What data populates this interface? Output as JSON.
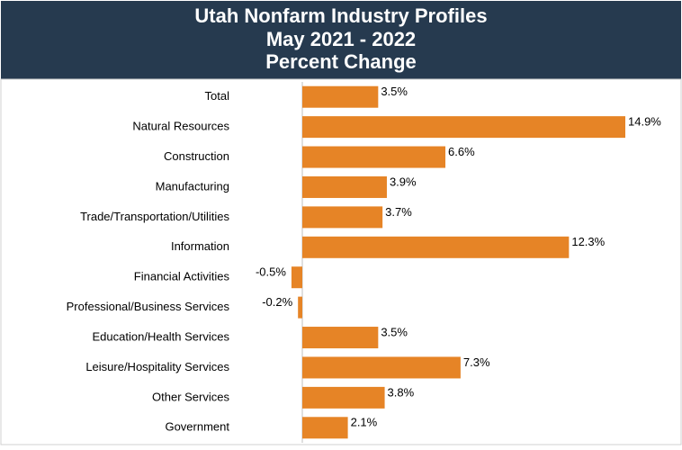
{
  "chart_data": {
    "type": "bar",
    "orientation": "horizontal",
    "title": "Utah Nonfarm Industry Profiles",
    "subtitle": [
      "May 2021 - 2022",
      "Percent Change"
    ],
    "categories": [
      "Total",
      "Natural Resources",
      "Construction",
      "Manufacturing",
      "Trade/Transportation/Utilities",
      "Information",
      "Financial Activities",
      "Professional/Business Services",
      "Education/Health Services",
      "Leisure/Hospitality Services",
      "Other Services",
      "Government"
    ],
    "values": [
      3.5,
      14.9,
      6.6,
      3.9,
      3.7,
      12.3,
      -0.5,
      -0.2,
      3.5,
      7.3,
      3.8,
      2.1
    ],
    "value_labels": [
      "3.5%",
      "14.9%",
      "6.6%",
      "3.9%",
      "3.7%",
      "12.3%",
      "-0.5%",
      "-0.2%",
      "3.5%",
      "7.3%",
      "3.8%",
      "2.1%"
    ],
    "color": "#e68426",
    "header_color": "#263a4f"
  }
}
